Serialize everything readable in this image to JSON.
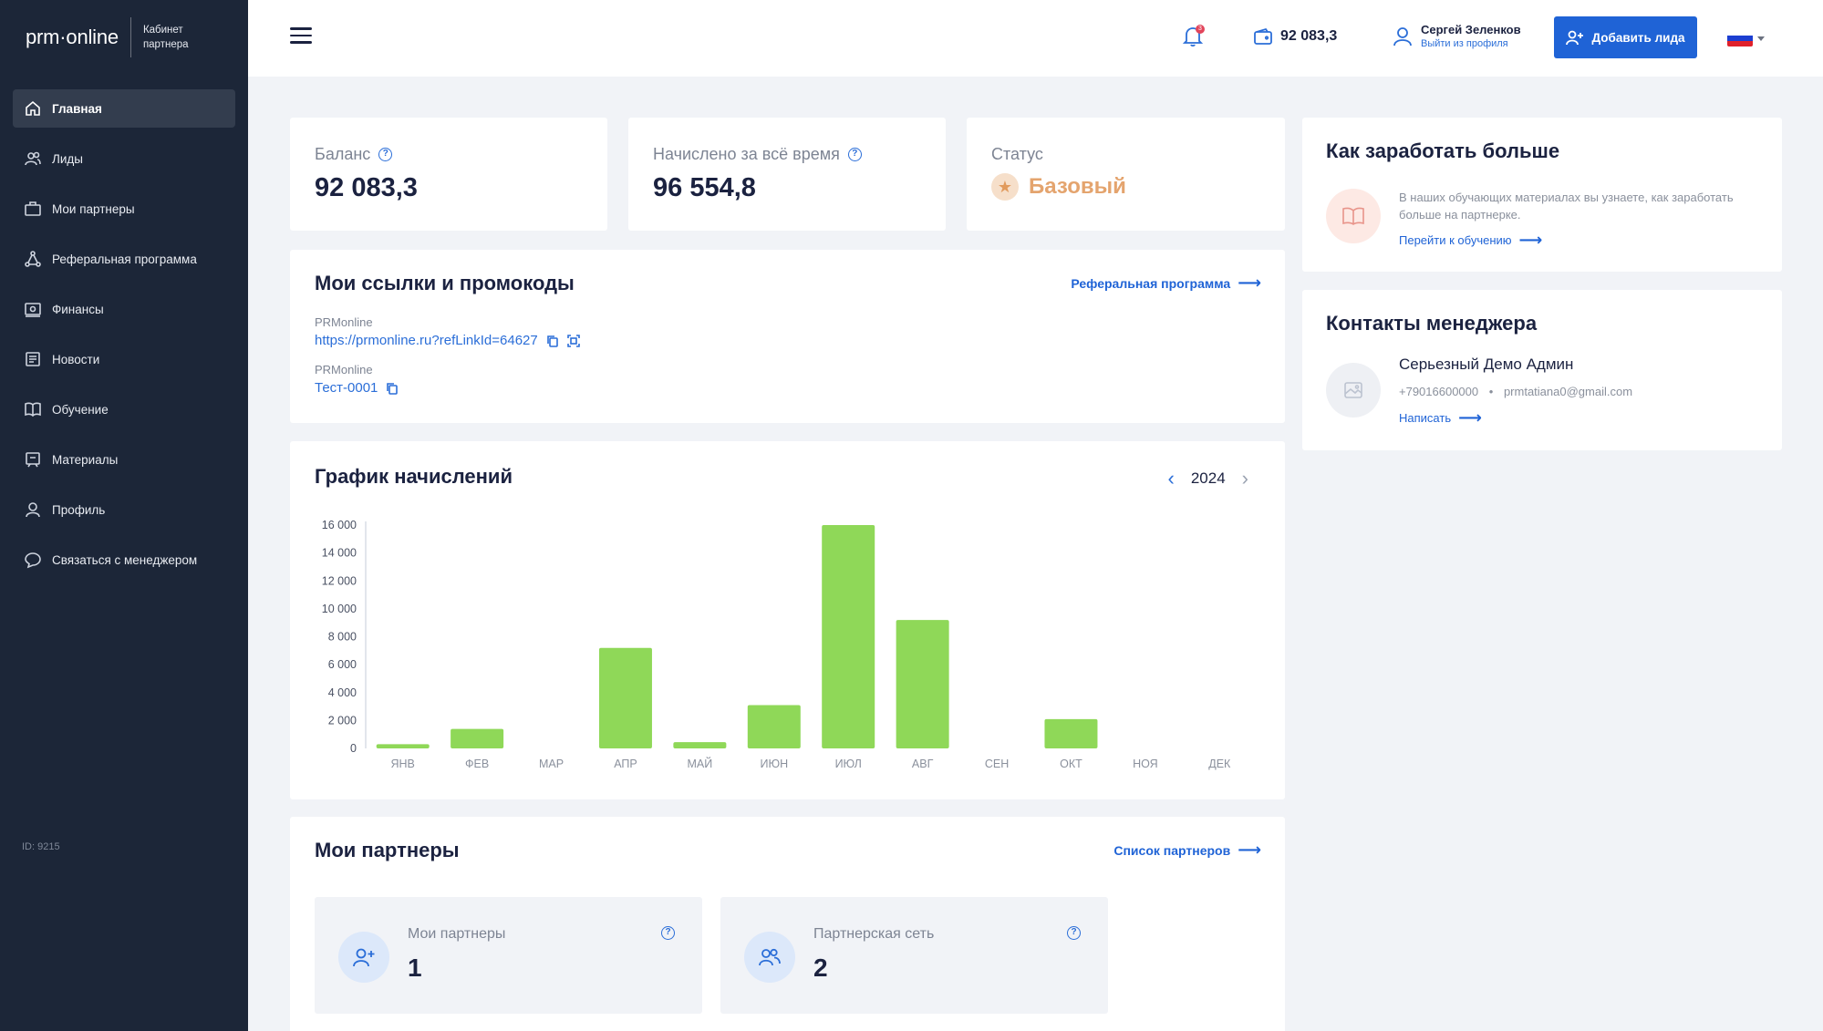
{
  "sidebar": {
    "logo": "prm·online",
    "cabinet": "Кабинет партнера",
    "items": [
      {
        "label": "Главная",
        "icon": "home-icon",
        "active": true
      },
      {
        "label": "Лиды",
        "icon": "users-icon"
      },
      {
        "label": "Мои партнеры",
        "icon": "briefcase-icon"
      },
      {
        "label": "Реферальная программа",
        "icon": "network-icon"
      },
      {
        "label": "Финансы",
        "icon": "finance-icon"
      },
      {
        "label": "Новости",
        "icon": "news-icon"
      },
      {
        "label": "Обучение",
        "icon": "book-icon"
      },
      {
        "label": "Материалы",
        "icon": "materials-icon"
      },
      {
        "label": "Профиль",
        "icon": "profile-icon"
      },
      {
        "label": "Связаться с менеджером",
        "icon": "chat-icon"
      }
    ],
    "id_text": "ID: 9215"
  },
  "header": {
    "notification_count": "3",
    "wallet_balance": "92 083,3",
    "user_name": "Сергей Зеленков",
    "logout": "Выйти из профиля",
    "add_lead": "Добавить лида",
    "lang_flag_colors": [
      "#ffffff",
      "#1c3fd1",
      "#e0212b"
    ]
  },
  "stats": {
    "balance_label": "Баланс",
    "balance_value": "92 083,3",
    "earned_label": "Начислено за всё время",
    "earned_value": "96 554,8",
    "status_label": "Статус",
    "status_value": "Базовый"
  },
  "links": {
    "title": "Мои ссылки и промокоды",
    "ref_program": "Реферальная программа",
    "items": [
      {
        "source": "PRMonline",
        "value": "https://prmonline.ru?refLinkId=64627"
      },
      {
        "source": "PRMonline",
        "value": "Тест-0001"
      }
    ]
  },
  "chart": {
    "title": "График начислений",
    "year": "2024"
  },
  "chart_data": {
    "type": "bar",
    "categories": [
      "ЯНВ",
      "ФЕВ",
      "МАР",
      "АПР",
      "МАЙ",
      "ИЮН",
      "ИЮЛ",
      "АВГ",
      "СЕН",
      "ОКТ",
      "НОЯ",
      "ДЕК"
    ],
    "values": [
      300,
      1400,
      0,
      7200,
      450,
      3100,
      16000,
      9200,
      0,
      2100,
      0,
      0
    ],
    "yticks": [
      "0",
      "2 000",
      "4 000",
      "6 000",
      "8 000",
      "10 000",
      "12 000",
      "14 000",
      "16 000"
    ],
    "ylim": [
      0,
      16000
    ],
    "color": "#8fd858",
    "xlabel": "",
    "ylabel": ""
  },
  "partners": {
    "title": "Мои партнеры",
    "list_link": "Список партнеров",
    "my_partners_label": "Мои партнеры",
    "my_partners_value": "1",
    "network_label": "Партнерская сеть",
    "network_value": "2"
  },
  "earn_more": {
    "title": "Как заработать больше",
    "text": "В наших обучающих материалах вы узнаете, как заработать больше на партнерке.",
    "link": "Перейти к обучению"
  },
  "manager": {
    "title": "Контакты менеджера",
    "name": "Серьезный Демо Админ",
    "phone": "+79016600000",
    "separator": "•",
    "email": "prmtatiana0@gmail.com",
    "write": "Написать"
  },
  "colors": {
    "accent": "#1f63d6",
    "sidebar_bg": "#1c2638",
    "bar": "#8fd858",
    "status": "#e4a46e"
  }
}
